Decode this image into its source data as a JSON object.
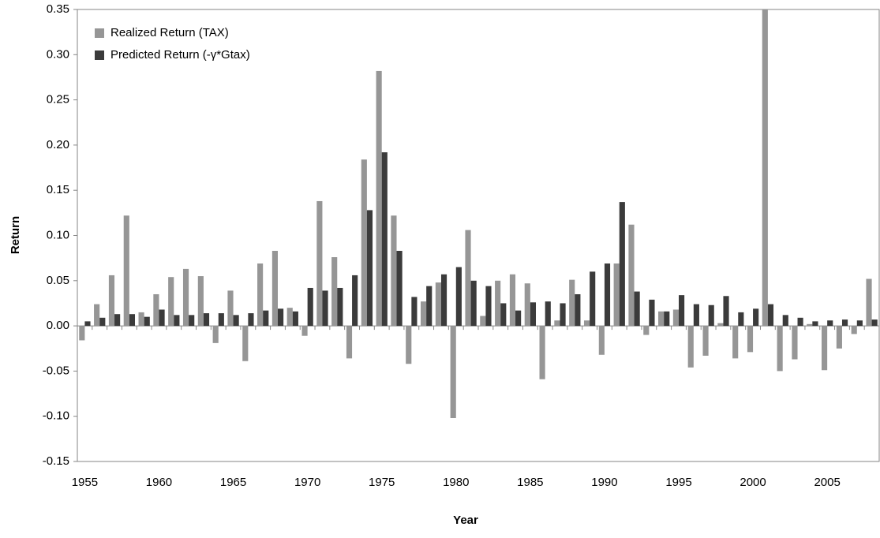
{
  "chart_data": {
    "type": "bar",
    "categories": [
      "1955",
      null,
      null,
      null,
      null,
      "1960",
      null,
      null,
      null,
      null,
      "1965",
      null,
      null,
      null,
      null,
      "1970",
      null,
      null,
      null,
      null,
      "1975",
      null,
      null,
      null,
      null,
      "1980",
      null,
      null,
      null,
      null,
      "1985",
      null,
      null,
      null,
      null,
      "1990",
      null,
      null,
      null,
      null,
      "1995",
      null,
      null,
      null,
      null,
      "2000",
      null,
      null,
      null,
      null,
      "2005",
      null,
      null,
      null
    ],
    "series": [
      {
        "name": "Realized Return (TAX)",
        "color": "#969696",
        "values": [
          -0.016,
          0.024,
          0.056,
          0.122,
          0.015,
          0.035,
          0.054,
          0.063,
          0.055,
          -0.019,
          0.039,
          -0.039,
          0.069,
          0.083,
          0.02,
          -0.011,
          0.138,
          0.076,
          -0.036,
          0.184,
          0.282,
          0.122,
          -0.042,
          0.027,
          0.048,
          -0.102,
          0.106,
          0.011,
          0.05,
          0.057,
          0.047,
          -0.059,
          0.006,
          0.051,
          0.006,
          -0.032,
          0.069,
          0.112,
          -0.01,
          0.016,
          0.018,
          -0.046,
          -0.033,
          0.003,
          -0.036,
          -0.029,
          0.35,
          -0.05,
          -0.037,
          0.002,
          -0.049,
          -0.025,
          -0.009,
          0.052
        ]
      },
      {
        "name": "Predicted Return (-γ*Gtax)",
        "color": "#3b3b3b",
        "values": [
          0.005,
          0.009,
          0.013,
          0.013,
          0.01,
          0.018,
          0.012,
          0.012,
          0.014,
          0.014,
          0.012,
          0.014,
          0.017,
          0.019,
          0.016,
          0.042,
          0.039,
          0.042,
          0.056,
          0.128,
          0.192,
          0.083,
          0.032,
          0.044,
          0.057,
          0.065,
          0.05,
          0.044,
          0.025,
          0.017,
          0.026,
          0.027,
          0.025,
          0.035,
          0.06,
          0.069,
          0.137,
          0.038,
          0.029,
          0.016,
          0.034,
          0.024,
          0.023,
          0.033,
          0.015,
          0.019,
          0.024,
          0.012,
          0.009,
          0.005,
          0.006,
          0.007,
          0.006,
          0.007
        ]
      }
    ],
    "ylim": [
      -0.15,
      0.35
    ],
    "yticks": [
      -0.15,
      {
        "value": -0.1,
        "label": "-0.10"
      },
      -0.05,
      {
        "value": 0,
        "label": "0.00"
      },
      0.05,
      {
        "value": 0.1,
        "label": "0.10"
      },
      0.15,
      {
        "value": 0.2,
        "label": "0.20"
      },
      0.25,
      {
        "value": 0.3,
        "label": "0.30"
      },
      0.35
    ],
    "ylabel": "Return",
    "xlabel": "Year",
    "legend": "top-left"
  }
}
